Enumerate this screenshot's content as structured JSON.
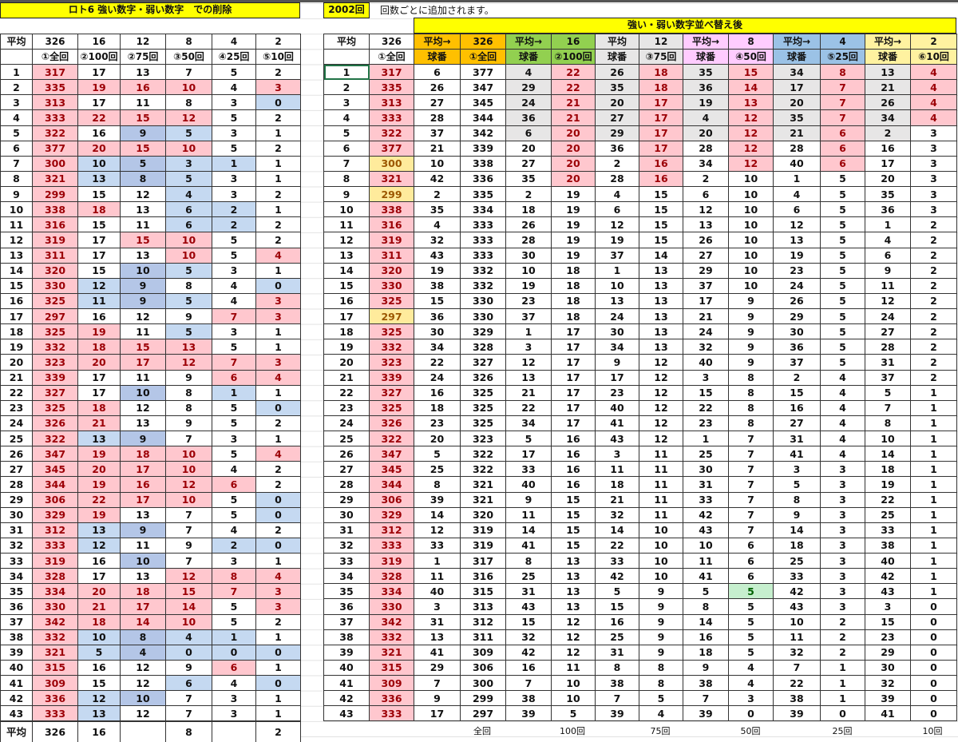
{
  "title": "ロト6 強い数字・弱い数字　での削除",
  "round": "2002回",
  "note": "回数ごとに追加されます。",
  "sorted_title": "強い・弱い数字並べ替え後",
  "colors": {
    "strong": "#ffc7ce",
    "strong_text": "#9c0006",
    "weak": "#c5d9f1",
    "weak_dark": "#b4c6e7",
    "lowest": "#ffeb9c",
    "highlight_green": "#c6efce",
    "title_yellow": "#ffff00"
  },
  "left": {
    "avg_label": "平均",
    "averages": [
      "326",
      "16",
      "12",
      "8",
      "4",
      "2"
    ],
    "headers": [
      "",
      "①全回",
      "②100回",
      "②75回",
      "③50回",
      "④25回",
      "⑤10回"
    ],
    "rows": [
      [
        1,
        317,
        17,
        13,
        7,
        5,
        2
      ],
      [
        2,
        335,
        19,
        16,
        10,
        4,
        3
      ],
      [
        3,
        313,
        17,
        11,
        8,
        3,
        0
      ],
      [
        4,
        333,
        22,
        15,
        12,
        5,
        2
      ],
      [
        5,
        322,
        16,
        9,
        5,
        3,
        1
      ],
      [
        6,
        377,
        20,
        15,
        10,
        5,
        2
      ],
      [
        7,
        300,
        10,
        5,
        3,
        1,
        1
      ],
      [
        8,
        321,
        13,
        8,
        5,
        3,
        1
      ],
      [
        9,
        299,
        15,
        12,
        4,
        3,
        2
      ],
      [
        10,
        338,
        18,
        13,
        6,
        2,
        1
      ],
      [
        11,
        316,
        15,
        11,
        6,
        2,
        2
      ],
      [
        12,
        319,
        17,
        15,
        10,
        5,
        2
      ],
      [
        13,
        311,
        17,
        13,
        10,
        5,
        4
      ],
      [
        14,
        320,
        15,
        10,
        5,
        3,
        1
      ],
      [
        15,
        330,
        12,
        9,
        8,
        4,
        0
      ],
      [
        16,
        325,
        11,
        9,
        5,
        4,
        3
      ],
      [
        17,
        297,
        16,
        12,
        9,
        7,
        3
      ],
      [
        18,
        325,
        19,
        11,
        5,
        3,
        1
      ],
      [
        19,
        332,
        18,
        15,
        13,
        5,
        1
      ],
      [
        20,
        323,
        20,
        17,
        12,
        7,
        3
      ],
      [
        21,
        339,
        17,
        11,
        9,
        6,
        4
      ],
      [
        22,
        327,
        17,
        10,
        8,
        1,
        1
      ],
      [
        23,
        325,
        18,
        12,
        8,
        5,
        0
      ],
      [
        24,
        326,
        21,
        13,
        9,
        5,
        2
      ],
      [
        25,
        322,
        13,
        9,
        7,
        3,
        1
      ],
      [
        26,
        347,
        19,
        18,
        10,
        5,
        4
      ],
      [
        27,
        345,
        20,
        17,
        10,
        4,
        2
      ],
      [
        28,
        344,
        19,
        16,
        12,
        6,
        2
      ],
      [
        29,
        306,
        22,
        17,
        10,
        5,
        0
      ],
      [
        30,
        329,
        19,
        13,
        7,
        5,
        0
      ],
      [
        31,
        312,
        13,
        9,
        7,
        4,
        2
      ],
      [
        32,
        333,
        12,
        11,
        9,
        2,
        0
      ],
      [
        33,
        319,
        16,
        10,
        7,
        3,
        1
      ],
      [
        34,
        328,
        17,
        13,
        12,
        8,
        4
      ],
      [
        35,
        334,
        20,
        18,
        15,
        7,
        3
      ],
      [
        36,
        330,
        21,
        17,
        14,
        5,
        3
      ],
      [
        37,
        342,
        18,
        14,
        10,
        5,
        2
      ],
      [
        38,
        332,
        10,
        8,
        4,
        1,
        1
      ],
      [
        39,
        321,
        5,
        4,
        0,
        0,
        0
      ],
      [
        40,
        315,
        16,
        12,
        9,
        6,
        1
      ],
      [
        41,
        309,
        15,
        12,
        6,
        4,
        0
      ],
      [
        42,
        336,
        12,
        10,
        7,
        3,
        1
      ],
      [
        43,
        333,
        13,
        12,
        7,
        3,
        1
      ]
    ],
    "footer": [
      "平均",
      "326",
      "16",
      "",
      "8",
      "",
      "2"
    ]
  },
  "right": {
    "avg_label": "平均",
    "avg_value": "326",
    "header_row1": [
      "平均→",
      "326",
      "平均→",
      "16",
      "平均",
      "12",
      "平均→",
      "8",
      "平均→",
      "4",
      "平均→",
      "2"
    ],
    "header_row2_first": "①全回",
    "header_row2": [
      "球番",
      "①全回",
      "球番",
      "②100回",
      "球番",
      "③75回",
      "球番",
      "④50回",
      "球番",
      "⑤25回",
      "球番",
      "⑥10回"
    ],
    "rows": [
      [
        1,
        317,
        6,
        377,
        4,
        22,
        26,
        18,
        35,
        15,
        34,
        8,
        13,
        4
      ],
      [
        2,
        335,
        26,
        347,
        29,
        22,
        35,
        18,
        36,
        14,
        17,
        7,
        21,
        4
      ],
      [
        3,
        313,
        27,
        345,
        24,
        21,
        20,
        17,
        19,
        13,
        20,
        7,
        26,
        4
      ],
      [
        4,
        333,
        28,
        344,
        36,
        21,
        27,
        17,
        4,
        12,
        35,
        7,
        34,
        4
      ],
      [
        5,
        322,
        37,
        342,
        6,
        20,
        29,
        17,
        20,
        12,
        21,
        6,
        2,
        3
      ],
      [
        6,
        377,
        21,
        339,
        20,
        20,
        36,
        17,
        28,
        12,
        28,
        6,
        16,
        3
      ],
      [
        7,
        300,
        10,
        338,
        27,
        20,
        2,
        16,
        34,
        12,
        40,
        6,
        17,
        3
      ],
      [
        8,
        321,
        42,
        336,
        35,
        20,
        28,
        16,
        2,
        10,
        1,
        5,
        20,
        3
      ],
      [
        9,
        299,
        2,
        335,
        2,
        19,
        4,
        15,
        6,
        10,
        4,
        5,
        35,
        3
      ],
      [
        10,
        338,
        35,
        334,
        18,
        19,
        6,
        15,
        12,
        10,
        6,
        5,
        36,
        3
      ],
      [
        11,
        316,
        4,
        333,
        26,
        19,
        12,
        15,
        13,
        10,
        12,
        5,
        1,
        2
      ],
      [
        12,
        319,
        32,
        333,
        28,
        19,
        19,
        15,
        26,
        10,
        13,
        5,
        4,
        2
      ],
      [
        13,
        311,
        43,
        333,
        30,
        19,
        37,
        14,
        27,
        10,
        19,
        5,
        6,
        2
      ],
      [
        14,
        320,
        19,
        332,
        10,
        18,
        1,
        13,
        29,
        10,
        23,
        5,
        9,
        2
      ],
      [
        15,
        330,
        38,
        332,
        19,
        18,
        10,
        13,
        37,
        10,
        24,
        5,
        11,
        2
      ],
      [
        16,
        325,
        15,
        330,
        23,
        18,
        13,
        13,
        17,
        9,
        26,
        5,
        12,
        2
      ],
      [
        17,
        297,
        36,
        330,
        37,
        18,
        24,
        13,
        21,
        9,
        29,
        5,
        24,
        2
      ],
      [
        18,
        325,
        30,
        329,
        1,
        17,
        30,
        13,
        24,
        9,
        30,
        5,
        27,
        2
      ],
      [
        19,
        332,
        34,
        328,
        3,
        17,
        34,
        13,
        32,
        9,
        36,
        5,
        28,
        2
      ],
      [
        20,
        323,
        22,
        327,
        12,
        17,
        9,
        12,
        40,
        9,
        37,
        5,
        31,
        2
      ],
      [
        21,
        339,
        24,
        326,
        13,
        17,
        17,
        12,
        3,
        8,
        2,
        4,
        37,
        2
      ],
      [
        22,
        327,
        16,
        325,
        21,
        17,
        23,
        12,
        15,
        8,
        15,
        4,
        5,
        1
      ],
      [
        23,
        325,
        18,
        325,
        22,
        17,
        40,
        12,
        22,
        8,
        16,
        4,
        7,
        1
      ],
      [
        24,
        326,
        23,
        325,
        34,
        17,
        41,
        12,
        23,
        8,
        27,
        4,
        8,
        1
      ],
      [
        25,
        322,
        20,
        323,
        5,
        16,
        43,
        12,
        1,
        7,
        31,
        4,
        10,
        1
      ],
      [
        26,
        347,
        5,
        322,
        17,
        16,
        3,
        11,
        25,
        7,
        41,
        4,
        14,
        1
      ],
      [
        27,
        345,
        25,
        322,
        33,
        16,
        11,
        11,
        30,
        7,
        3,
        3,
        18,
        1
      ],
      [
        28,
        344,
        8,
        321,
        40,
        16,
        18,
        11,
        31,
        7,
        5,
        3,
        19,
        1
      ],
      [
        29,
        306,
        39,
        321,
        9,
        15,
        21,
        11,
        33,
        7,
        8,
        3,
        22,
        1
      ],
      [
        30,
        329,
        14,
        320,
        11,
        15,
        32,
        11,
        42,
        7,
        9,
        3,
        25,
        1
      ],
      [
        31,
        312,
        12,
        319,
        14,
        15,
        14,
        10,
        43,
        7,
        14,
        3,
        33,
        1
      ],
      [
        32,
        333,
        33,
        319,
        41,
        15,
        22,
        10,
        10,
        6,
        18,
        3,
        38,
        1
      ],
      [
        33,
        319,
        1,
        317,
        8,
        13,
        33,
        10,
        11,
        6,
        25,
        3,
        40,
        1
      ],
      [
        34,
        328,
        11,
        316,
        25,
        13,
        42,
        10,
        41,
        6,
        33,
        3,
        42,
        1
      ],
      [
        35,
        334,
        40,
        315,
        31,
        13,
        5,
        9,
        5,
        5,
        42,
        3,
        43,
        1
      ],
      [
        36,
        330,
        3,
        313,
        43,
        13,
        15,
        9,
        8,
        5,
        43,
        3,
        3,
        0
      ],
      [
        37,
        342,
        31,
        312,
        15,
        12,
        16,
        9,
        14,
        5,
        10,
        2,
        15,
        0
      ],
      [
        38,
        332,
        13,
        311,
        32,
        12,
        25,
        9,
        16,
        5,
        11,
        2,
        23,
        0
      ],
      [
        39,
        321,
        41,
        309,
        42,
        12,
        31,
        9,
        18,
        5,
        32,
        2,
        29,
        0
      ],
      [
        40,
        315,
        29,
        306,
        16,
        11,
        8,
        8,
        9,
        4,
        7,
        1,
        30,
        0
      ],
      [
        41,
        309,
        7,
        300,
        7,
        10,
        38,
        8,
        38,
        4,
        22,
        1,
        32,
        0
      ],
      [
        42,
        336,
        9,
        299,
        38,
        10,
        7,
        5,
        7,
        3,
        38,
        1,
        39,
        0
      ],
      [
        43,
        333,
        17,
        297,
        39,
        5,
        39,
        4,
        39,
        0,
        39,
        0,
        41,
        0
      ]
    ],
    "footer": [
      "全回",
      "100回",
      "75回",
      "50回",
      "25回",
      "10回"
    ]
  }
}
